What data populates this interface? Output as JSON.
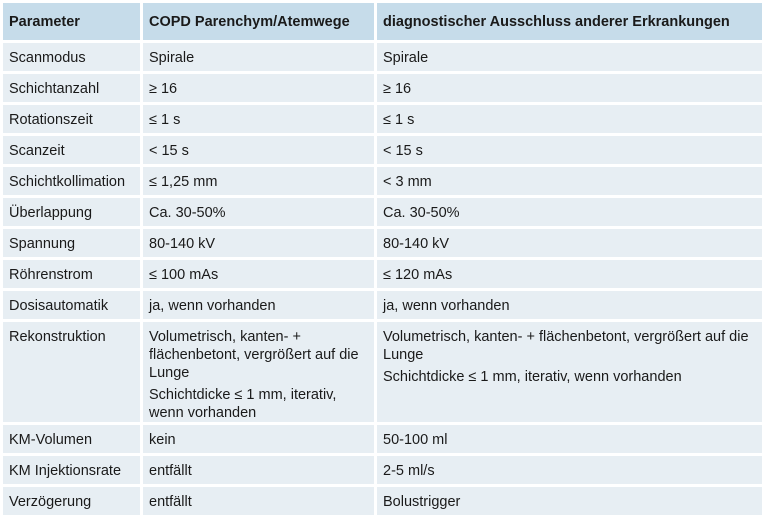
{
  "table": {
    "headers": [
      "Parameter",
      "COPD Parenchym/Atemwege",
      "diagnostischer Ausschluss anderer Erkrankungen"
    ],
    "rows": [
      {
        "parameter": "Scanmodus",
        "copd": [
          "Spirale"
        ],
        "ausschluss": [
          "Spirale"
        ]
      },
      {
        "parameter": "Schichtanzahl",
        "copd": [
          "≥ 16"
        ],
        "ausschluss": [
          "≥ 16"
        ]
      },
      {
        "parameter": "Rotationszeit",
        "copd": [
          "≤ 1 s"
        ],
        "ausschluss": [
          "≤ 1 s"
        ]
      },
      {
        "parameter": "Scanzeit",
        "copd": [
          "< 15 s"
        ],
        "ausschluss": [
          "< 15 s"
        ]
      },
      {
        "parameter": "Schichtkollimation",
        "copd": [
          "≤ 1,25 mm"
        ],
        "ausschluss": [
          "< 3 mm"
        ]
      },
      {
        "parameter": "Überlappung",
        "copd": [
          "Ca. 30-50%"
        ],
        "ausschluss": [
          "Ca. 30-50%"
        ]
      },
      {
        "parameter": "Spannung",
        "copd": [
          "80-140 kV"
        ],
        "ausschluss": [
          "80-140 kV"
        ]
      },
      {
        "parameter": "Röhrenstrom",
        "copd": [
          "≤ 100 mAs"
        ],
        "ausschluss": [
          "≤ 120 mAs"
        ]
      },
      {
        "parameter": "Dosisautomatik",
        "copd": [
          "ja, wenn vorhanden"
        ],
        "ausschluss": [
          "ja, wenn vorhanden"
        ]
      },
      {
        "parameter": "Rekonstruktion",
        "copd": [
          "Volumetrisch, kanten- + flächenbetont, vergrößert auf die Lunge",
          "Schichtdicke ≤ 1 mm, iterativ, wenn vorhanden"
        ],
        "ausschluss": [
          "Volumetrisch, kanten- + flächenbetont, vergrößert auf die Lunge",
          "Schichtdicke ≤ 1 mm, iterativ, wenn vorhanden"
        ]
      },
      {
        "parameter": "KM-Volumen",
        "copd": [
          "kein"
        ],
        "ausschluss": [
          "50-100 ml"
        ]
      },
      {
        "parameter": "KM Injektionsrate",
        "copd": [
          "entfällt"
        ],
        "ausschluss": [
          "2-5 ml/s"
        ]
      },
      {
        "parameter": "Verzögerung",
        "copd": [
          "entfällt"
        ],
        "ausschluss": [
          "Bolustrigger"
        ]
      }
    ]
  },
  "colors": {
    "header_bg": "#c6dcea",
    "cell_bg": "#e7eef3"
  }
}
